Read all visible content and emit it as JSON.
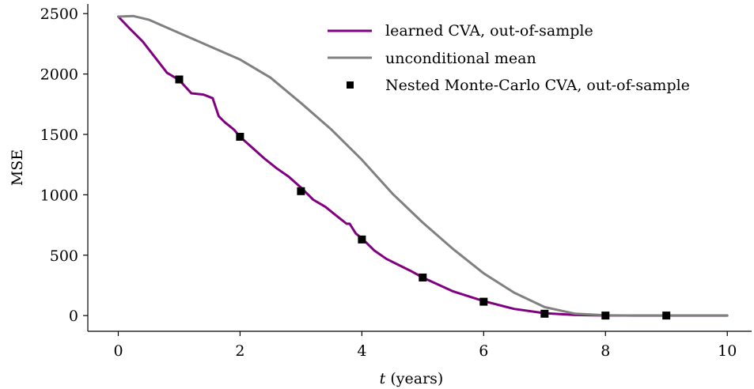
{
  "chart_data": {
    "type": "line",
    "xlabel": "t (years)",
    "xlabel_var": "t",
    "xlabel_unit": " (years)",
    "ylabel": "MSE",
    "xlim": [
      -0.5,
      10.4
    ],
    "ylim": [
      -130,
      2580
    ],
    "xticks": [
      0,
      2,
      4,
      6,
      8,
      10
    ],
    "yticks": [
      0,
      500,
      1000,
      1500,
      2000,
      2500
    ],
    "grid": false,
    "legend_position": "top-right",
    "series": [
      {
        "name": "learned CVA, out-of-sample",
        "kind": "line",
        "color": "#800080",
        "x": [
          0,
          0.2,
          0.4,
          0.6,
          0.8,
          1.0,
          1.2,
          1.4,
          1.55,
          1.65,
          1.75,
          1.9,
          2.0,
          2.2,
          2.4,
          2.6,
          2.8,
          3.0,
          3.2,
          3.4,
          3.6,
          3.75,
          3.8,
          3.9,
          4.0,
          4.2,
          4.4,
          4.6,
          4.8,
          5.0,
          5.5,
          6.0,
          6.5,
          7.0,
          7.5,
          8.0,
          8.5,
          9.0,
          9.5,
          10.0
        ],
        "y": [
          2475,
          2370,
          2270,
          2140,
          2010,
          1950,
          1840,
          1830,
          1800,
          1650,
          1600,
          1540,
          1480,
          1390,
          1300,
          1220,
          1150,
          1060,
          960,
          900,
          820,
          760,
          760,
          680,
          640,
          540,
          470,
          420,
          370,
          315,
          200,
          120,
          55,
          20,
          5,
          1,
          0,
          0,
          0,
          0
        ]
      },
      {
        "name": "unconditional mean",
        "kind": "line",
        "color": "#808080",
        "x": [
          0,
          0.25,
          0.5,
          1.0,
          1.5,
          2.0,
          2.5,
          3.0,
          3.5,
          4.0,
          4.5,
          5.0,
          5.5,
          6.0,
          6.5,
          7.0,
          7.5,
          8.0,
          8.5,
          9.0,
          9.5,
          10.0
        ],
        "y": [
          2475,
          2480,
          2450,
          2340,
          2230,
          2120,
          1970,
          1760,
          1540,
          1290,
          1010,
          770,
          550,
          350,
          190,
          70,
          15,
          2,
          0,
          0,
          0,
          0
        ]
      },
      {
        "name": "Nested Monte-Carlo CVA, out-of-sample",
        "kind": "scatter",
        "color": "#000000",
        "x": [
          1,
          2,
          3,
          4,
          5,
          6,
          7,
          8,
          9
        ],
        "y": [
          1955,
          1480,
          1030,
          630,
          315,
          115,
          15,
          0,
          0
        ]
      }
    ]
  }
}
